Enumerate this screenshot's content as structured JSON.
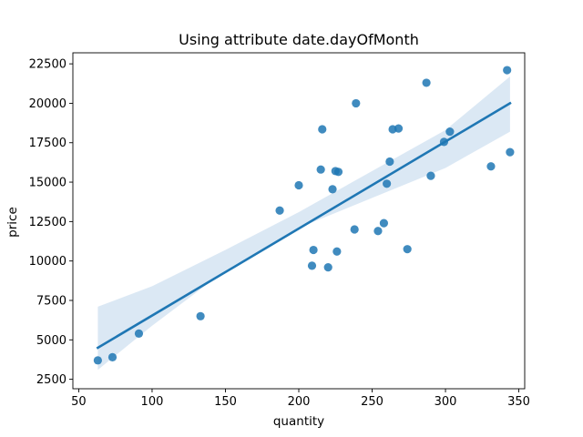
{
  "chart_data": {
    "type": "scatter",
    "title": "Using attribute date.dayOfMonth",
    "xlabel": "quantity",
    "ylabel": "price",
    "xlim": [
      46,
      354
    ],
    "ylim": [
      1900,
      23200
    ],
    "xticks": [
      50,
      100,
      150,
      200,
      250,
      300,
      350
    ],
    "yticks": [
      2500,
      5000,
      7500,
      10000,
      12500,
      15000,
      17500,
      20000,
      22500
    ],
    "grid": false,
    "colors": {
      "points": "#1f77b4",
      "line": "#1f77b4",
      "band": "#cfe0f0"
    },
    "points": [
      {
        "x": 63,
        "y": 3700
      },
      {
        "x": 73,
        "y": 3900
      },
      {
        "x": 91,
        "y": 5400
      },
      {
        "x": 133,
        "y": 6500
      },
      {
        "x": 187,
        "y": 13200
      },
      {
        "x": 200,
        "y": 14800
      },
      {
        "x": 209,
        "y": 9700
      },
      {
        "x": 210,
        "y": 10700
      },
      {
        "x": 215,
        "y": 15800
      },
      {
        "x": 216,
        "y": 18350
      },
      {
        "x": 220,
        "y": 9600
      },
      {
        "x": 223,
        "y": 14550
      },
      {
        "x": 225,
        "y": 15700
      },
      {
        "x": 226,
        "y": 10600
      },
      {
        "x": 227,
        "y": 15650
      },
      {
        "x": 238,
        "y": 12000
      },
      {
        "x": 239,
        "y": 20000
      },
      {
        "x": 254,
        "y": 11900
      },
      {
        "x": 258,
        "y": 12400
      },
      {
        "x": 260,
        "y": 14900
      },
      {
        "x": 262,
        "y": 16300
      },
      {
        "x": 264,
        "y": 18350
      },
      {
        "x": 268,
        "y": 18400
      },
      {
        "x": 274,
        "y": 10750
      },
      {
        "x": 287,
        "y": 21300
      },
      {
        "x": 290,
        "y": 15400
      },
      {
        "x": 299,
        "y": 17550
      },
      {
        "x": 303,
        "y": 18200
      },
      {
        "x": 331,
        "y": 16000
      },
      {
        "x": 342,
        "y": 22100
      },
      {
        "x": 344,
        "y": 16900
      }
    ],
    "regression": {
      "x": [
        63,
        344
      ],
      "y": [
        4500,
        20000
      ]
    },
    "confidence_band": {
      "x": [
        63,
        100,
        150,
        200,
        250,
        300,
        344
      ],
      "lower": [
        3100,
        5900,
        9400,
        12100,
        14000,
        15900,
        18200
      ],
      "upper": [
        7100,
        8400,
        10700,
        13100,
        15700,
        18300,
        21700
      ]
    }
  }
}
